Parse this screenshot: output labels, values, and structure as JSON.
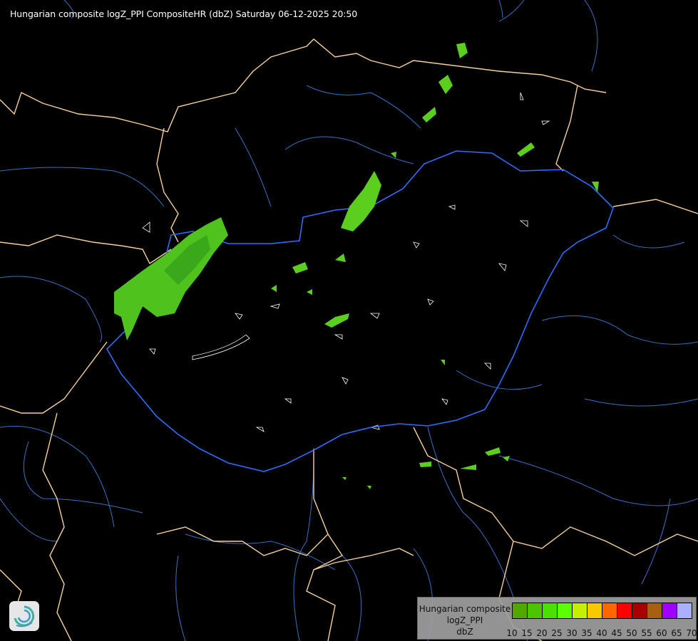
{
  "title": "Hungarian composite logZ_PPI CompositeHR (dbZ) Saturday 06-12-2025 20:50",
  "legend": {
    "lines": [
      "Hungarian composite",
      "logZ_PPI",
      "dbZ"
    ],
    "ticks": [
      "10",
      "15",
      "20",
      "25",
      "30",
      "35",
      "40",
      "45",
      "50",
      "55",
      "60",
      "65",
      "70"
    ],
    "colors": [
      "#50a800",
      "#4cc400",
      "#4ce000",
      "#5aff00",
      "#c4f000",
      "#f8c800",
      "#ff6600",
      "#ff0000",
      "#a80000",
      "#a86010",
      "#a000ff",
      "#aab0ff"
    ]
  },
  "map_colors": {
    "background": "#000000",
    "country_border": "#f5d29a",
    "rivers": "#4a7fd0",
    "hungary_border": "#2f6cff",
    "county_outline": "#ffffff",
    "precip": "#5ccf1e"
  },
  "logo": "swirl-logo-icon"
}
